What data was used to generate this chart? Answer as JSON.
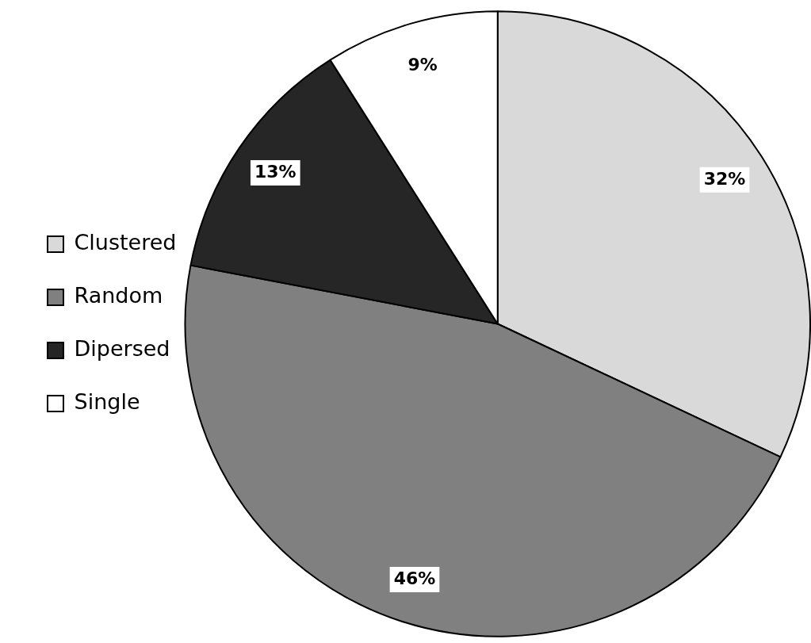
{
  "chart_data": {
    "type": "pie",
    "categories": [
      "Clustered",
      "Random",
      "Dipersed",
      "Single"
    ],
    "values": [
      32,
      46,
      13,
      9
    ],
    "colors": [
      "#d9d9d9",
      "#808080",
      "#262626",
      "#ffffff"
    ],
    "value_labels": [
      "32%",
      "46%",
      "13%",
      "9%"
    ],
    "legend": "left"
  }
}
